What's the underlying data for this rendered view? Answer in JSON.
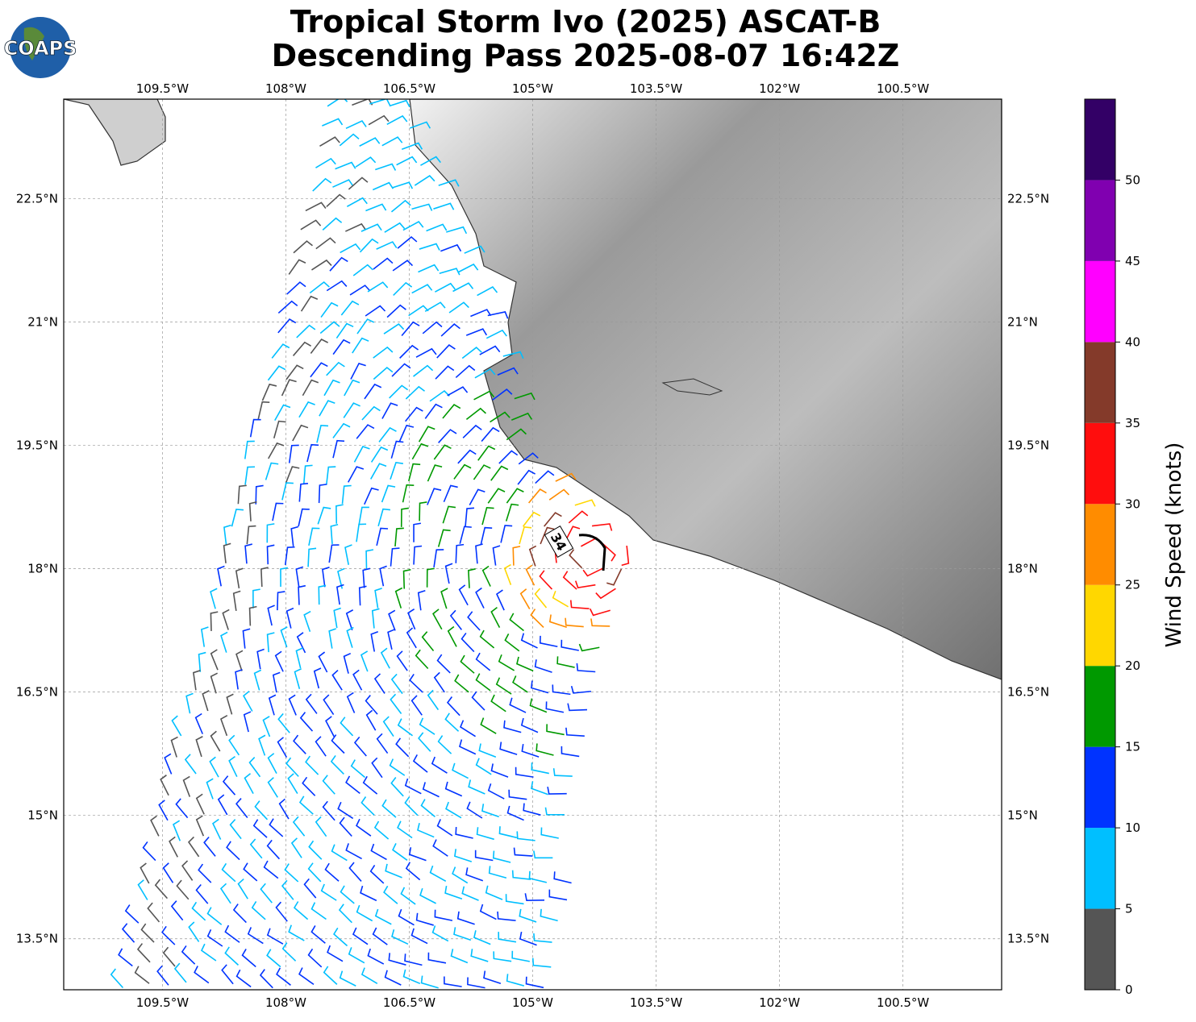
{
  "header": {
    "title": [
      "Tropical Storm Ivo (2025) ASCAT-B",
      "Descending Pass 2025-08-07 16:42Z"
    ],
    "logo": "COAPS"
  },
  "map": {
    "xlim": [
      -110.7,
      -99.3
    ],
    "ylim": [
      12.88,
      23.71
    ],
    "grid": true,
    "xticks": [
      {
        "value": -109.5,
        "label": "109.5°W"
      },
      {
        "value": -108,
        "label": "108°W"
      },
      {
        "value": -106.5,
        "label": "106.5°W"
      },
      {
        "value": -105,
        "label": "105°W"
      },
      {
        "value": -103.5,
        "label": "103.5°W"
      },
      {
        "value": -102,
        "label": "102°W"
      },
      {
        "value": -100.5,
        "label": "100.5°W"
      }
    ],
    "yticks": [
      {
        "value": 22.5,
        "label": "22.5°N"
      },
      {
        "value": 21,
        "label": "21°N"
      },
      {
        "value": 19.5,
        "label": "19.5°N"
      },
      {
        "value": 18,
        "label": "18°N"
      },
      {
        "value": 16.5,
        "label": "16.5°N"
      },
      {
        "value": 15,
        "label": "15°N"
      },
      {
        "value": 13.5,
        "label": "13.5°N"
      }
    ],
    "annotation": "34"
  },
  "colorbar": {
    "label": "Wind Speed (knots)",
    "lim": [
      0,
      55
    ],
    "bounds": [
      0,
      5,
      10,
      15,
      20,
      25,
      30,
      35,
      40,
      45,
      50,
      55
    ],
    "colors": [
      "#555555",
      "#00bfff",
      "#0033ff",
      "#009900",
      "#ffd700",
      "#ff8c00",
      "#ff0d0d",
      "#843a2a",
      "#ff00ff",
      "#8000b0",
      "#330066"
    ],
    "ticks": [
      0,
      5,
      10,
      15,
      20,
      25,
      30,
      35,
      40,
      45,
      50
    ]
  }
}
